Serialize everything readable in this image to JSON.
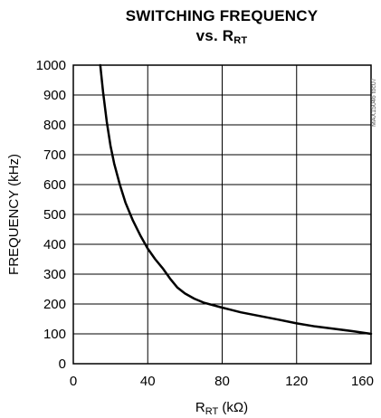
{
  "chart_data": {
    "type": "line",
    "title_line1": "SWITCHING FREQUENCY",
    "title_line2_prefix": "vs. R",
    "title_line2_sub": "RT",
    "xlabel_main": "R",
    "xlabel_sub": "RT",
    "xlabel_unit": " (kΩ)",
    "ylabel": "FREQUENCY (kHz)",
    "figure_code": "MAX15046 toc07",
    "xlim": [
      0,
      160
    ],
    "ylim": [
      0,
      1000
    ],
    "x_ticks": [
      0,
      40,
      80,
      120,
      160
    ],
    "x_tick_labels": [
      "0",
      "40",
      "80",
      "120",
      "160"
    ],
    "y_ticks": [
      0,
      100,
      200,
      300,
      400,
      500,
      600,
      700,
      800,
      900,
      1000
    ],
    "y_tick_labels": [
      "0",
      "100",
      "200",
      "300",
      "400",
      "500",
      "600",
      "700",
      "800",
      "900",
      "1000"
    ],
    "grid": true,
    "series": [
      {
        "x": [
          14.5,
          16,
          18,
          20,
          22,
          25,
          28,
          32,
          36,
          40,
          44,
          48,
          52,
          56,
          60,
          65,
          70,
          80,
          90,
          100,
          110,
          120,
          130,
          140,
          150,
          160
        ],
        "y": [
          1000,
          910,
          810,
          730,
          670,
          600,
          540,
          480,
          430,
          385,
          350,
          320,
          285,
          255,
          235,
          218,
          205,
          188,
          172,
          160,
          148,
          135,
          125,
          117,
          109,
          100
        ]
      }
    ]
  }
}
